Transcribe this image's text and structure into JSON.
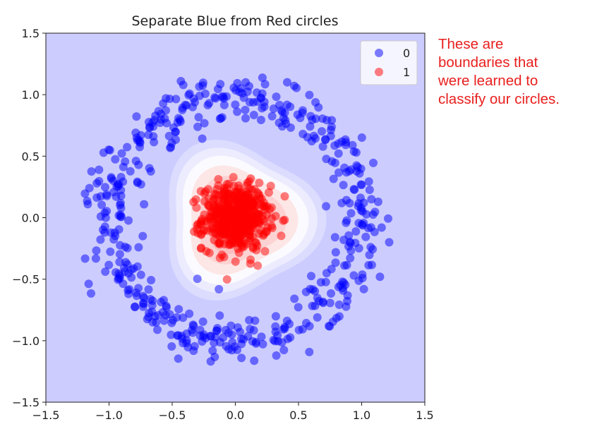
{
  "chart_data": {
    "type": "scatter",
    "title": "Separate Blue from Red circles",
    "xlabel": "",
    "ylabel": "",
    "xlim": [
      -1.5,
      1.5
    ],
    "ylim": [
      -1.5,
      1.5
    ],
    "xticks": [
      "−1.5",
      "−1.0",
      "−0.5",
      "0.0",
      "0.5",
      "1.0",
      "1.5"
    ],
    "yticks": [
      "1.5",
      "1.0",
      "0.5",
      "0.0",
      "−0.5",
      "−1.0",
      "−1.5"
    ],
    "grid": false,
    "legend_position": "top-right",
    "background_region": {
      "class": "0",
      "color": "#ccccff"
    },
    "decision_boundary_levels": [
      {
        "scale": 1.0,
        "color": "#dcdcff"
      },
      {
        "scale": 0.9,
        "color": "#ececfe"
      },
      {
        "scale": 0.8,
        "color": "#fbfbff"
      },
      {
        "scale": 0.68,
        "color": "#fde6e6"
      },
      {
        "scale": 0.55,
        "color": "#fcd2d2"
      },
      {
        "scale": 0.42,
        "color": "#fabebe"
      }
    ],
    "boundary_shape": {
      "center": [
        0.02,
        -0.02
      ],
      "radius": 0.62,
      "distortion": 0.13
    },
    "series": [
      {
        "name": "0",
        "color": "#0000ff",
        "alpha": 0.5,
        "distribution": "ring",
        "radius_mean": 1.0,
        "radius_sd": 0.1,
        "count": 500
      },
      {
        "name": "1",
        "color": "#ff0000",
        "alpha": 0.5,
        "distribution": "disc",
        "radius_sd": 0.13,
        "count": 500
      }
    ]
  },
  "annotation": {
    "text": "These are\nboundaries that\nwere learned to\nclassify our circles."
  }
}
